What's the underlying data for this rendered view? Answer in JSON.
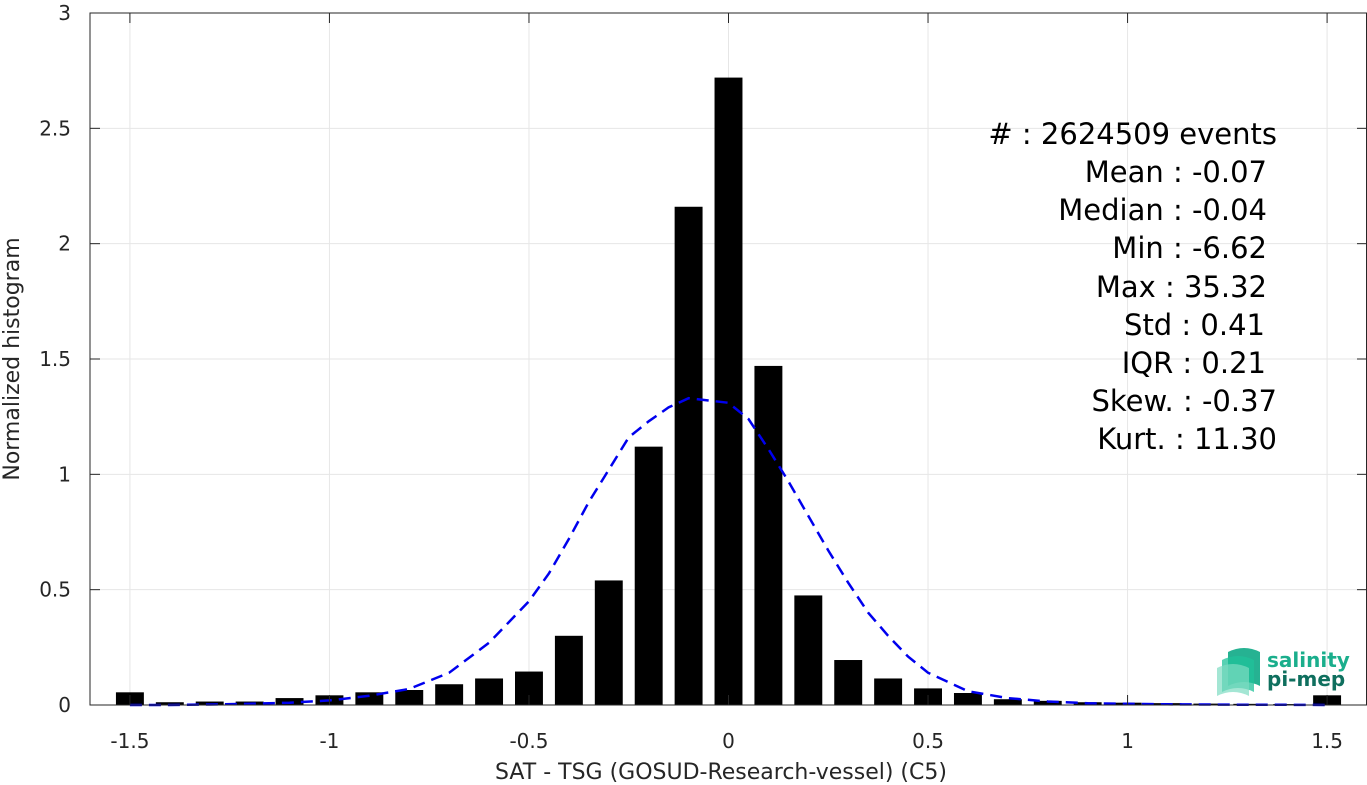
{
  "chart_data": {
    "type": "bar",
    "xlabel": "SAT - TSG (GOSUD-Research-vessel) (C5)",
    "ylabel": "Normalized histogram",
    "xlim": [
      -1.6,
      1.6
    ],
    "ylim": [
      0,
      3
    ],
    "xticks": [
      -1.5,
      -1,
      -0.5,
      0,
      0.5,
      1,
      1.5
    ],
    "xtick_labels": [
      "-1.5",
      "-1",
      "-0.5",
      "0",
      "0.5",
      "1",
      "1.5"
    ],
    "yticks": [
      0,
      0.5,
      1,
      1.5,
      2,
      2.5,
      3
    ],
    "ytick_labels": [
      "0",
      "0.5",
      "1",
      "1.5",
      "2",
      "2.5",
      "3"
    ],
    "grid": true,
    "bar_width": 0.07,
    "bars": {
      "x": [
        -1.5,
        -1.4,
        -1.3,
        -1.2,
        -1.1,
        -1.0,
        -0.9,
        -0.8,
        -0.7,
        -0.6,
        -0.5,
        -0.4,
        -0.3,
        -0.2,
        -0.1,
        0.0,
        0.1,
        0.2,
        0.3,
        0.4,
        0.5,
        0.6,
        0.7,
        0.8,
        0.9,
        1.0,
        1.1,
        1.2,
        1.3,
        1.4,
        1.5
      ],
      "values": [
        0.055,
        0.012,
        0.015,
        0.015,
        0.03,
        0.042,
        0.055,
        0.065,
        0.09,
        0.115,
        0.145,
        0.3,
        0.54,
        1.12,
        2.16,
        2.72,
        1.47,
        0.475,
        0.195,
        0.115,
        0.072,
        0.052,
        0.025,
        0.018,
        0.012,
        0.01,
        0.008,
        0.006,
        0.005,
        0.004,
        0.042
      ],
      "color": "#000000"
    },
    "fit_curve": {
      "style": "dashed",
      "color": "#0000ee",
      "x": [
        -1.5,
        -1.4,
        -1.3,
        -1.2,
        -1.1,
        -1.0,
        -0.9,
        -0.8,
        -0.7,
        -0.6,
        -0.5,
        -0.45,
        -0.4,
        -0.35,
        -0.3,
        -0.25,
        -0.2,
        -0.15,
        -0.1,
        -0.05,
        0.0,
        0.05,
        0.1,
        0.15,
        0.2,
        0.25,
        0.3,
        0.35,
        0.4,
        0.45,
        0.5,
        0.6,
        0.7,
        0.8,
        0.9,
        1.0,
        1.1,
        1.2,
        1.3,
        1.4,
        1.5
      ],
      "y": [
        0.0,
        0.0,
        0.002,
        0.005,
        0.01,
        0.02,
        0.04,
        0.07,
        0.14,
        0.27,
        0.45,
        0.57,
        0.72,
        0.88,
        1.02,
        1.16,
        1.23,
        1.29,
        1.33,
        1.32,
        1.31,
        1.24,
        1.11,
        0.97,
        0.82,
        0.67,
        0.53,
        0.4,
        0.3,
        0.21,
        0.14,
        0.06,
        0.03,
        0.015,
        0.008,
        0.005,
        0.003,
        0.002,
        0.001,
        0.001,
        0.0
      ]
    },
    "annotation_lines": [
      "#  : 2624509 events",
      "Mean : -0.07",
      "Median : -0.04",
      "Min : -6.62",
      "Max : 35.32",
      "Std : 0.41",
      "IQR : 0.21",
      "Skew. : -0.37",
      "Kurt. : 11.30"
    ],
    "logo": {
      "line1": "salinity",
      "line2": "pi-mep",
      "color1": "#1aae8c",
      "color2": "#0f6f5e"
    }
  }
}
